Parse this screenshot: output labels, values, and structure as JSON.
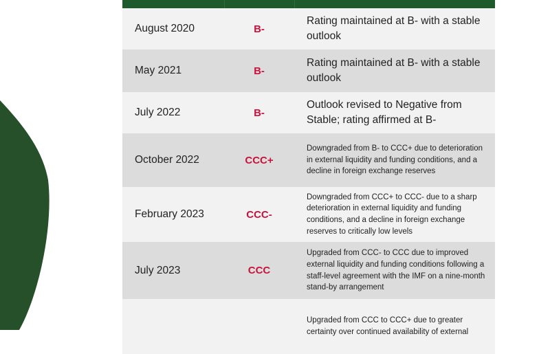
{
  "colors": {
    "header": "#1f5a2c",
    "rating": "#c8123c",
    "blob": "#26502a",
    "row_light": "#f2f2f2",
    "row_dark": "#dcdcdc"
  },
  "rows": [
    {
      "date": "August 2020",
      "rating": "B-",
      "description": "Rating maintained at B- with a stable outlook"
    },
    {
      "date": "May 2021",
      "rating": "B-",
      "description": "Rating maintained at B- with a stable outlook"
    },
    {
      "date": "July 2022",
      "rating": "B-",
      "description": "Outlook revised to Negative from Stable; rating affirmed at B-"
    },
    {
      "date": "October 2022",
      "rating": "CCC+",
      "description": "Downgraded from B- to CCC+ due to deterioration in external liquidity and funding conditions, and a decline in foreign exchange reserves"
    },
    {
      "date": "February 2023",
      "rating": "CCC-",
      "description": "Downgraded from CCC+ to CCC- due to a sharp deterioration in external liquidity and funding conditions, and a decline in foreign exchange reserves to critically low levels"
    },
    {
      "date": "July 2023",
      "rating": "CCC",
      "description": "Upgraded from CCC- to CCC due to improved external liquidity and funding conditions following a staff-level agreement with the IMF on a nine-month stand-by arrangement"
    },
    {
      "date": "",
      "rating": "",
      "description": "Upgraded from CCC to CCC+ due to greater certainty over continued availability of external"
    }
  ]
}
